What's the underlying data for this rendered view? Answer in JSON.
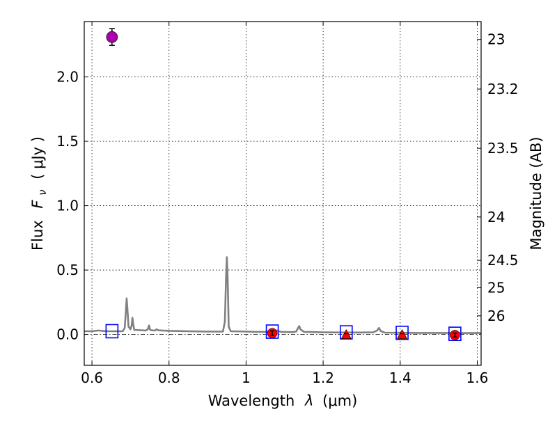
{
  "chart_data": {
    "type": "line",
    "xlabel_text": "Wavelength",
    "xlabel_symbol": "λ",
    "xlabel_unit": "(μm)",
    "ylabel_text": "Flux",
    "ylabel_symbol": "F",
    "ylabel_subscript": "ν",
    "ylabel_unit": "( μJy )",
    "y2label": "Magnitude (AB)",
    "xlim": [
      0.58,
      1.61
    ],
    "ylim": [
      -0.24,
      2.43
    ],
    "grid": true,
    "x_ticks": [
      {
        "value": 0.6,
        "label": "0.6"
      },
      {
        "value": 0.8,
        "label": "0.8"
      },
      {
        "value": 1.0,
        "label": "1"
      },
      {
        "value": 1.2,
        "label": "1.2"
      },
      {
        "value": 1.4,
        "label": "1.4"
      },
      {
        "value": 1.6,
        "label": "1.6"
      }
    ],
    "y_ticks": [
      {
        "value": 0.0,
        "label": "0.0"
      },
      {
        "value": 0.5,
        "label": "0.5"
      },
      {
        "value": 1.0,
        "label": "1.0"
      },
      {
        "value": 1.5,
        "label": "1.5"
      },
      {
        "value": 2.0,
        "label": "2.0"
      }
    ],
    "y2_ticks": [
      {
        "value": 23,
        "label": "23"
      },
      {
        "value": 23.2,
        "label": "23.2"
      },
      {
        "value": 23.5,
        "label": "23.5"
      },
      {
        "value": 24,
        "label": "24"
      },
      {
        "value": 24.5,
        "label": "24.5"
      },
      {
        "value": 25,
        "label": "25"
      },
      {
        "value": 26,
        "label": "26"
      }
    ],
    "zero_line": 0.0,
    "spectrum": {
      "color": "#808080",
      "points": [
        [
          0.58,
          0.025
        ],
        [
          0.6,
          0.025
        ],
        [
          0.615,
          0.03
        ],
        [
          0.62,
          0.03
        ],
        [
          0.625,
          0.028
        ],
        [
          0.64,
          0.025
        ],
        [
          0.66,
          0.025
        ],
        [
          0.68,
          0.025
        ],
        [
          0.685,
          0.05
        ],
        [
          0.688,
          0.18
        ],
        [
          0.69,
          0.28
        ],
        [
          0.692,
          0.2
        ],
        [
          0.695,
          0.06
        ],
        [
          0.7,
          0.04
        ],
        [
          0.703,
          0.07
        ],
        [
          0.705,
          0.13
        ],
        [
          0.707,
          0.08
        ],
        [
          0.71,
          0.035
        ],
        [
          0.74,
          0.03
        ],
        [
          0.745,
          0.04
        ],
        [
          0.748,
          0.07
        ],
        [
          0.751,
          0.035
        ],
        [
          0.76,
          0.03
        ],
        [
          0.765,
          0.032
        ],
        [
          0.768,
          0.04
        ],
        [
          0.772,
          0.032
        ],
        [
          0.8,
          0.028
        ],
        [
          0.85,
          0.025
        ],
        [
          0.9,
          0.022
        ],
        [
          0.94,
          0.022
        ],
        [
          0.945,
          0.1
        ],
        [
          0.948,
          0.45
        ],
        [
          0.95,
          0.6
        ],
        [
          0.952,
          0.45
        ],
        [
          0.955,
          0.06
        ],
        [
          0.96,
          0.025
        ],
        [
          1.0,
          0.022
        ],
        [
          1.02,
          0.02
        ],
        [
          1.05,
          0.02
        ],
        [
          1.07,
          0.024
        ],
        [
          1.08,
          0.03
        ],
        [
          1.09,
          0.02
        ],
        [
          1.12,
          0.018
        ],
        [
          1.13,
          0.022
        ],
        [
          1.135,
          0.05
        ],
        [
          1.138,
          0.065
        ],
        [
          1.141,
          0.04
        ],
        [
          1.15,
          0.02
        ],
        [
          1.2,
          0.016
        ],
        [
          1.25,
          0.015
        ],
        [
          1.3,
          0.015
        ],
        [
          1.33,
          0.016
        ],
        [
          1.34,
          0.03
        ],
        [
          1.345,
          0.05
        ],
        [
          1.35,
          0.025
        ],
        [
          1.36,
          0.014
        ],
        [
          1.4,
          0.013
        ],
        [
          1.45,
          0.012
        ],
        [
          1.5,
          0.012
        ],
        [
          1.55,
          0.011
        ],
        [
          1.61,
          0.011
        ]
      ]
    },
    "model_squares": {
      "color": "#0000ff",
      "points": [
        [
          0.652,
          0.025
        ],
        [
          1.068,
          0.022
        ],
        [
          1.26,
          0.016
        ],
        [
          1.405,
          0.012
        ],
        [
          1.542,
          0.005
        ]
      ]
    },
    "observed_circles": {
      "color": "#ff0000",
      "points": [
        {
          "x": 1.068,
          "y": 0.01,
          "err": 0.018
        },
        {
          "x": 1.542,
          "y": -0.005,
          "err": 0.015
        }
      ]
    },
    "upper_limit_triangles": {
      "color": "#ff0000",
      "points": [
        [
          1.26,
          0.0
        ],
        [
          1.405,
          0.0
        ]
      ]
    },
    "highlight_point": {
      "color": "#aa00aa",
      "x": 0.652,
      "y": 2.31,
      "err": 0.065
    }
  }
}
